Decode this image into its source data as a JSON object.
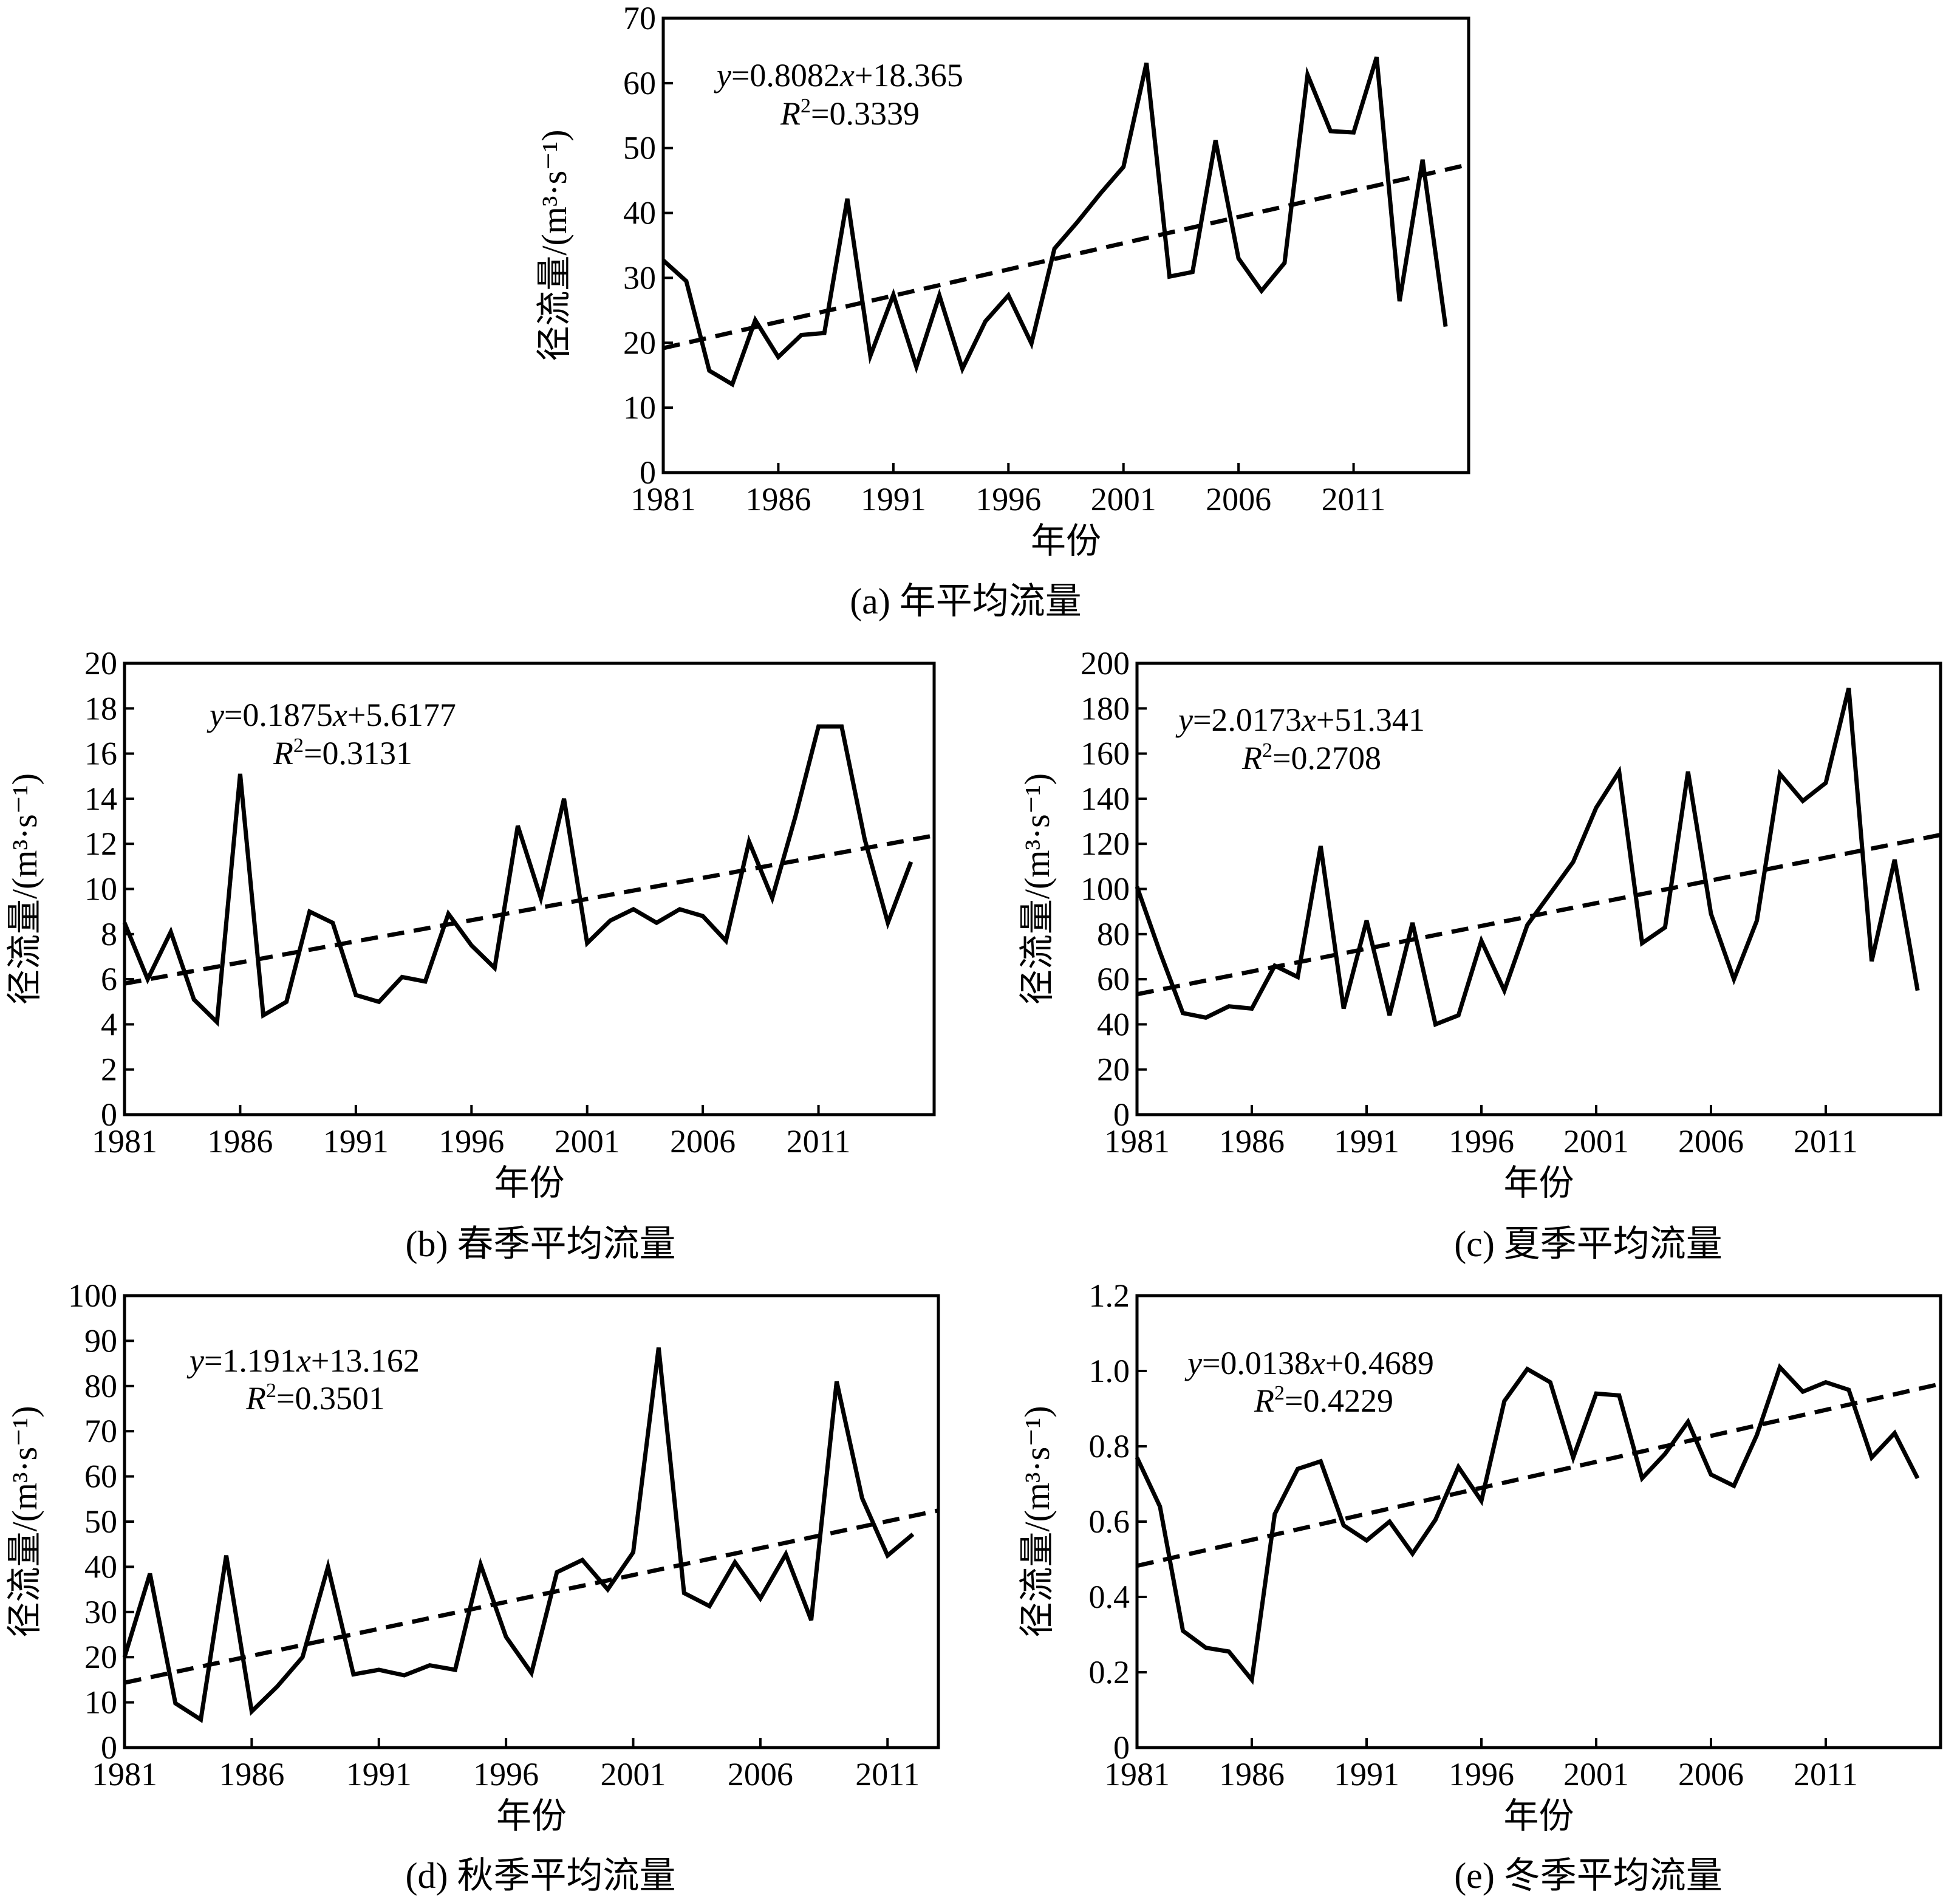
{
  "panels": [
    {
      "caption": "(a) 年平均流量",
      "equation": {
        "y": "y",
        "middle": "=0.8082",
        "x": "x",
        "rest": "+18.365"
      },
      "r2": {
        "r": "R",
        "sup": "2",
        "rest": "=0.3339"
      }
    },
    {
      "caption": "(b) 春季平均流量",
      "equation": {
        "y": "y",
        "middle": "=0.1875",
        "x": "x",
        "rest": "+5.6177"
      },
      "r2": {
        "r": "R",
        "sup": "2",
        "rest": "=0.3131"
      }
    },
    {
      "caption": "(c) 夏季平均流量",
      "equation": {
        "y": "y",
        "middle": "=2.0173",
        "x": "x",
        "rest": "+51.341"
      },
      "r2": {
        "r": "R",
        "sup": "2",
        "rest": "=0.2708"
      }
    },
    {
      "caption": "(d) 秋季平均流量",
      "equation": {
        "y": "y",
        "middle": "=1.191",
        "x": "x",
        "rest": "+13.162"
      },
      "r2": {
        "r": "R",
        "sup": "2",
        "rest": "=0.3501"
      }
    },
    {
      "caption": "(e) 冬季平均流量",
      "equation": {
        "y": "y",
        "middle": "=0.0138",
        "x": "x",
        "rest": "+0.4689"
      },
      "r2": {
        "r": "R",
        "sup": "2",
        "rest": "=0.4229"
      }
    }
  ],
  "chart_data": [
    {
      "type": "line",
      "caption": "(a) 年平均流量",
      "xlabel": "年份",
      "ylabel": "径流量/(m³·s⁻¹)",
      "xlim": [
        1981,
        2016
      ],
      "xticks": [
        1981,
        1986,
        1991,
        1996,
        2001,
        2006,
        2011
      ],
      "ylim": [
        0,
        70
      ],
      "yticks": [
        0,
        10,
        20,
        30,
        40,
        50,
        60,
        70
      ],
      "x": [
        1981,
        1982,
        1983,
        1984,
        1985,
        1986,
        1987,
        1988,
        1989,
        1990,
        1991,
        1992,
        1993,
        1994,
        1995,
        1996,
        1997,
        1998,
        1999,
        2000,
        2001,
        2002,
        2003,
        2004,
        2005,
        2006,
        2007,
        2008,
        2009,
        2010,
        2011,
        2012,
        2013,
        2014,
        2015
      ],
      "series": [
        {
          "values": [
            32.7,
            29.5,
            15.7,
            13.6,
            23.5,
            17.8,
            21.2,
            21.5,
            42.2,
            18.0,
            27.4,
            16.3,
            27.3,
            16.0,
            23.3,
            27.3,
            19.9,
            34.5,
            38.6,
            43.0,
            47.1,
            63.1,
            30.2,
            30.9,
            51.2,
            33.0,
            28.0,
            32.3,
            61.3,
            52.6,
            52.4,
            64.0,
            26.4,
            48.2,
            22.5
          ]
        }
      ],
      "trend": {
        "slope": 0.8082,
        "intercept": 18.365
      },
      "equation": "y=0.8082x+18.365",
      "r2": "R²=0.3339",
      "grid": false,
      "legend": "none"
    },
    {
      "type": "line",
      "caption": "(b) 春季平均流量",
      "xlabel": "年份",
      "ylabel": "径流量/(m³·s⁻¹)",
      "xlim": [
        1981,
        2016
      ],
      "xticks": [
        1981,
        1986,
        1991,
        1996,
        2001,
        2006,
        2011
      ],
      "ylim": [
        0,
        20
      ],
      "yticks": [
        0,
        2,
        4,
        6,
        8,
        10,
        12,
        14,
        16,
        18,
        20
      ],
      "x": [
        1981,
        1982,
        1983,
        1984,
        1985,
        1986,
        1987,
        1988,
        1989,
        1990,
        1991,
        1992,
        1993,
        1994,
        1995,
        1996,
        1997,
        1998,
        1999,
        2000,
        2001,
        2002,
        2003,
        2004,
        2005,
        2006,
        2007,
        2008,
        2009,
        2010,
        2011,
        2012,
        2013,
        2014,
        2015
      ],
      "series": [
        {
          "values": [
            8.5,
            6.0,
            8.1,
            5.1,
            4.1,
            15.1,
            4.4,
            5.0,
            9.0,
            8.5,
            5.3,
            5.0,
            6.1,
            5.9,
            8.9,
            7.5,
            6.5,
            12.8,
            9.6,
            14.0,
            7.6,
            8.6,
            9.1,
            8.5,
            9.1,
            8.8,
            7.7,
            12.1,
            9.6,
            13.2,
            17.2,
            17.2,
            12.2,
            8.5,
            11.2
          ]
        }
      ],
      "trend": {
        "slope": 0.1875,
        "intercept": 5.6177
      },
      "equation": "y=0.1875x+5.6177",
      "r2": "R²=0.3131",
      "grid": false,
      "legend": "none"
    },
    {
      "type": "line",
      "caption": "(c) 夏季平均流量",
      "xlabel": "年份",
      "ylabel": "径流量/(m³·s⁻¹)",
      "xlim": [
        1981,
        2016
      ],
      "xticks": [
        1981,
        1986,
        1991,
        1996,
        2001,
        2006,
        2011
      ],
      "ylim": [
        0,
        200
      ],
      "yticks": [
        0,
        20,
        40,
        60,
        80,
        100,
        120,
        140,
        160,
        180,
        200
      ],
      "x": [
        1981,
        1982,
        1983,
        1984,
        1985,
        1986,
        1987,
        1988,
        1989,
        1990,
        1991,
        1992,
        1993,
        1994,
        1995,
        1996,
        1997,
        1998,
        1999,
        2000,
        2001,
        2002,
        2003,
        2004,
        2005,
        2006,
        2007,
        2008,
        2009,
        2010,
        2011,
        2012,
        2013,
        2014,
        2015
      ],
      "series": [
        {
          "values": [
            101,
            72,
            45,
            43,
            48,
            47,
            66,
            61,
            119,
            47,
            86,
            44,
            85,
            40,
            44,
            77,
            55,
            84,
            98,
            112,
            136,
            152,
            76,
            83,
            152,
            89,
            60,
            86,
            151,
            139,
            147,
            189,
            68,
            113,
            55
          ]
        }
      ],
      "trend": {
        "slope": 2.0173,
        "intercept": 51.341
      },
      "equation": "y=2.0173x+51.341",
      "r2": "R²=0.2708",
      "grid": false,
      "legend": "none"
    },
    {
      "type": "line",
      "caption": "(d) 秋季平均流量",
      "xlabel": "年份",
      "ylabel": "径流量/(m³·s⁻¹)",
      "xlim": [
        1981,
        2013
      ],
      "xticks": [
        1981,
        1986,
        1991,
        1996,
        2001,
        2006,
        2011
      ],
      "ylim": [
        0,
        100
      ],
      "yticks": [
        0,
        10,
        20,
        30,
        40,
        50,
        60,
        70,
        80,
        90,
        100
      ],
      "x": [
        1981,
        1982,
        1983,
        1984,
        1985,
        1986,
        1987,
        1988,
        1989,
        1990,
        1991,
        1992,
        1993,
        1994,
        1995,
        1996,
        1997,
        1998,
        1999,
        2000,
        2001,
        2002,
        2003,
        2004,
        2005,
        2006,
        2007,
        2008,
        2009,
        2010,
        2011,
        2012
      ],
      "series": [
        {
          "values": [
            20,
            38.5,
            9.8,
            6.2,
            42.5,
            8.0,
            13.5,
            20.0,
            40.0,
            16.2,
            17.2,
            16.0,
            18.2,
            17.2,
            40.5,
            24.5,
            16.5,
            38.8,
            41.5,
            35.0,
            43.2,
            88.5,
            34.2,
            31.3,
            41.0,
            33.0,
            42.8,
            28.2,
            81.0,
            55.2,
            42.5,
            47.2
          ]
        }
      ],
      "trend": {
        "slope": 1.191,
        "intercept": 13.162
      },
      "equation": "y=1.191x+13.162",
      "r2": "R²=0.3501",
      "grid": false,
      "legend": "none"
    },
    {
      "type": "line",
      "caption": "(e) 冬季平均流量",
      "xlabel": "年份",
      "ylabel": "径流量/(m³·s⁻¹)",
      "xlim": [
        1981,
        2016
      ],
      "xticks": [
        1981,
        1986,
        1991,
        1996,
        2001,
        2006,
        2011
      ],
      "ylim": [
        0,
        1.2
      ],
      "yticks": [
        "0",
        "0.2",
        "0.4",
        "0.6",
        "0.8",
        "1.0",
        "1.2"
      ],
      "x": [
        1981,
        1982,
        1983,
        1984,
        1985,
        1986,
        1987,
        1988,
        1989,
        1990,
        1991,
        1992,
        1993,
        1994,
        1995,
        1996,
        1997,
        1998,
        1999,
        2000,
        2001,
        2002,
        2003,
        2004,
        2005,
        2006,
        2007,
        2008,
        2009,
        2010,
        2011,
        2012,
        2013,
        2014,
        2015
      ],
      "series": [
        {
          "values": [
            0.77,
            0.64,
            0.31,
            0.265,
            0.255,
            0.18,
            0.62,
            0.74,
            0.76,
            0.59,
            0.55,
            0.6,
            0.515,
            0.605,
            0.745,
            0.655,
            0.92,
            1.005,
            0.97,
            0.77,
            0.94,
            0.935,
            0.715,
            0.78,
            0.865,
            0.725,
            0.695,
            0.83,
            1.01,
            0.945,
            0.97,
            0.95,
            0.77,
            0.835,
            0.715
          ]
        }
      ],
      "trend": {
        "slope": 0.0138,
        "intercept": 0.4689
      },
      "equation": "y=0.0138x+0.4689",
      "r2": "R²=0.4229",
      "grid": false,
      "legend": "none"
    }
  ]
}
